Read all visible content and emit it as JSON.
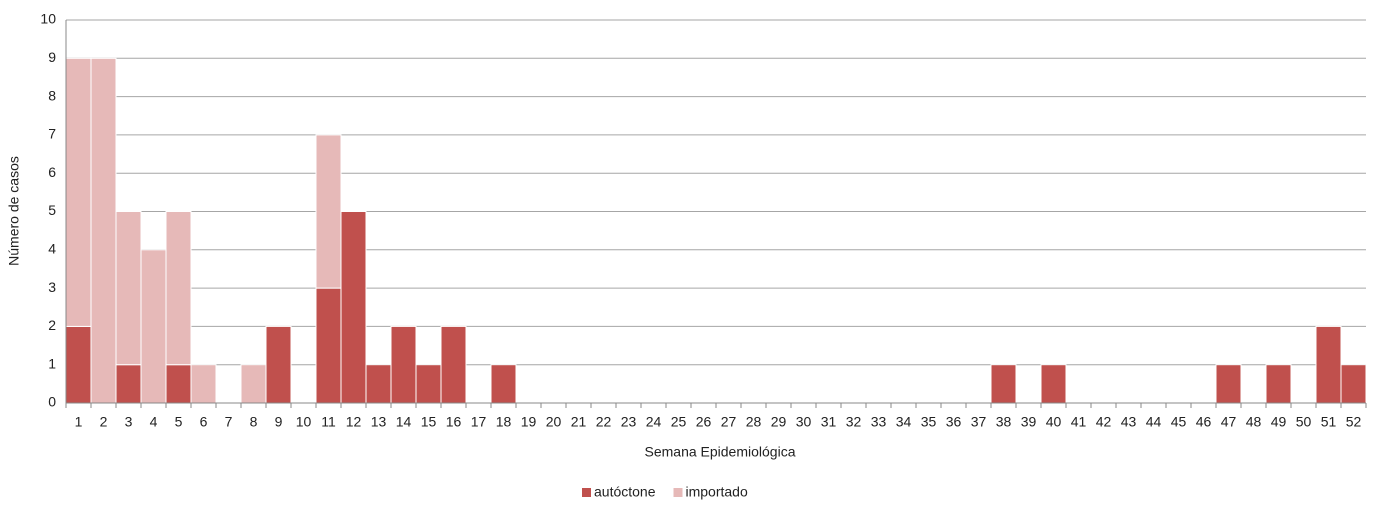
{
  "chart_data": {
    "type": "stacked_bar",
    "x_label": "Semana Epidemiológica",
    "y_label": "Número de casos",
    "categories": [
      "1",
      "2",
      "3",
      "4",
      "5",
      "6",
      "7",
      "8",
      "9",
      "10",
      "11",
      "12",
      "13",
      "14",
      "15",
      "16",
      "17",
      "18",
      "19",
      "20",
      "21",
      "22",
      "23",
      "24",
      "25",
      "26",
      "27",
      "28",
      "29",
      "30",
      "31",
      "32",
      "33",
      "34",
      "35",
      "36",
      "37",
      "38",
      "39",
      "40",
      "41",
      "42",
      "43",
      "44",
      "45",
      "46",
      "47",
      "48",
      "49",
      "50",
      "51",
      "52"
    ],
    "series": [
      {
        "name": "autóctone",
        "color": "#c0504d",
        "values": [
          2,
          0,
          1,
          0,
          1,
          0,
          0,
          0,
          2,
          0,
          3,
          5,
          1,
          2,
          1,
          2,
          0,
          1,
          0,
          0,
          0,
          0,
          0,
          0,
          0,
          0,
          0,
          0,
          0,
          0,
          0,
          0,
          0,
          0,
          0,
          0,
          0,
          1,
          0,
          1,
          0,
          0,
          0,
          0,
          0,
          0,
          1,
          0,
          1,
          0,
          2,
          1
        ]
      },
      {
        "name": "importado",
        "color": "#e6b9b8",
        "values": [
          7,
          9,
          4,
          4,
          4,
          1,
          0,
          1,
          0,
          0,
          4,
          0,
          0,
          0,
          0,
          0,
          0,
          0,
          0,
          0,
          0,
          0,
          0,
          0,
          0,
          0,
          0,
          0,
          0,
          0,
          0,
          0,
          0,
          0,
          0,
          0,
          0,
          0,
          0,
          0,
          0,
          0,
          0,
          0,
          0,
          0,
          0,
          0,
          0,
          0,
          0,
          0
        ]
      }
    ],
    "ylim": [
      0,
      10
    ],
    "yticks": [
      0,
      1,
      2,
      3,
      4,
      5,
      6,
      7,
      8,
      9,
      10
    ],
    "grid": true,
    "legend": "bottom"
  }
}
